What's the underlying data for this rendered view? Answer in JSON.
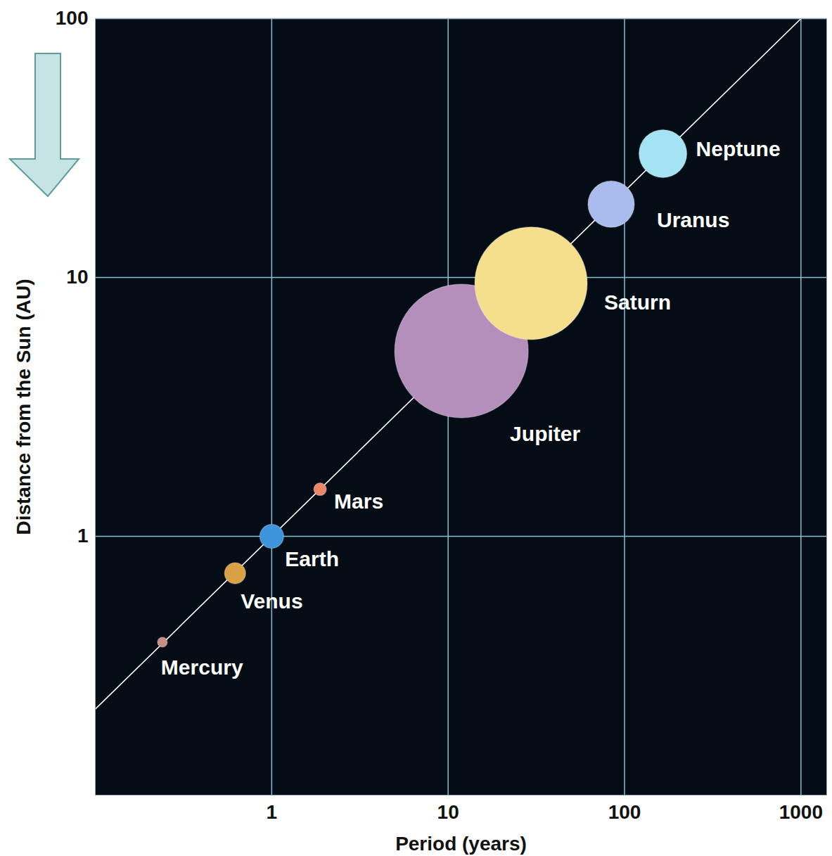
{
  "chart_data": {
    "type": "scatter",
    "x_label": "Period (years)",
    "y_label": "Distance from the Sun (AU)",
    "log": true,
    "grid": true,
    "categories": [
      "Mercury",
      "Venus",
      "Earth",
      "Mars",
      "Jupiter",
      "Saturn",
      "Uranus",
      "Neptune"
    ],
    "x": [
      0.24,
      0.62,
      1,
      1.88,
      11.9,
      29.5,
      84,
      165
    ],
    "values": [
      0.39,
      0.72,
      1,
      1.52,
      5.2,
      9.5,
      19.2,
      30.1
    ],
    "colors": [
      "#c98e80",
      "#d9a044",
      "#3d93dc",
      "#ec8766",
      "#b48fbc",
      "#f6df8c",
      "#a9bced",
      "#a3e3f3"
    ],
    "xlim": [
      0.1,
      1400
    ],
    "ylim": [
      0.1,
      100
    ],
    "xticks": [
      1,
      10,
      100,
      1000
    ],
    "yticks": [
      1,
      10,
      100
    ],
    "fit_line": {
      "x": [
        0.1,
        1000
      ],
      "values": [
        0.215,
        100
      ],
      "color": "#ffffff"
    }
  }
}
